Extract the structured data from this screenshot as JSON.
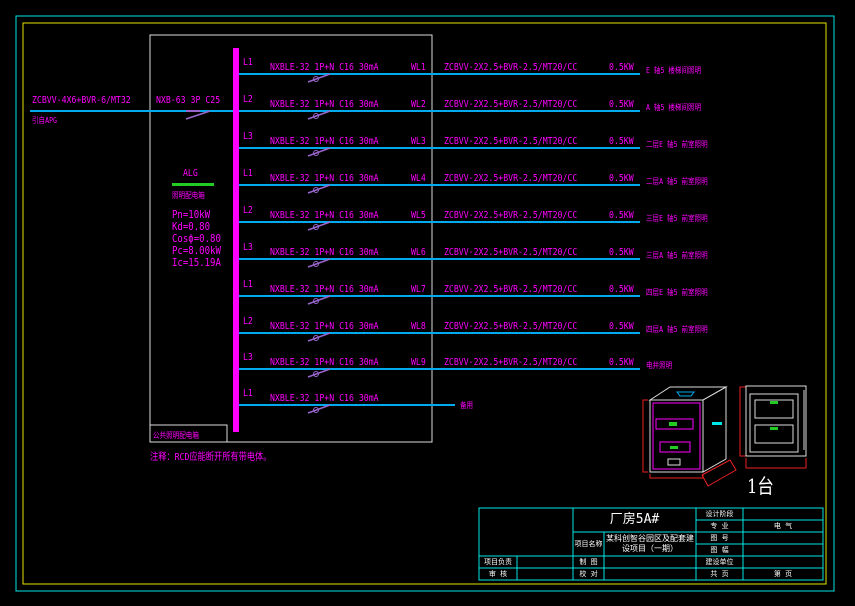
{
  "incoming": {
    "cable": "ZCBVV-4X6+BVR-6/MT32",
    "source": "引自APG",
    "breaker": "NXB-63  3P  C25"
  },
  "panel": {
    "name": "ALG",
    "type": "照明配电箱",
    "pn": "Pn=10kW",
    "kd": "Kd=0.80",
    "cos": "Cosϕ=0.80",
    "pc": "Pc=8.00kW",
    "ic": "Ic=15.19A",
    "box_label": "公共照明配电箱"
  },
  "note": "注释：RCD应能断开所有带电体。",
  "circuits": [
    {
      "phase": "L1",
      "breaker": "NXBLE-32  1P+N  C16  30mA",
      "id": "WL1",
      "cable": "ZCBVV-2X2.5+BVR-2.5/MT20/CC",
      "power": "0.5KW",
      "desc": "E 轴5 楼梯间照明"
    },
    {
      "phase": "L2",
      "breaker": "NXBLE-32  1P+N  C16  30mA",
      "id": "WL2",
      "cable": "ZCBVV-2X2.5+BVR-2.5/MT20/CC",
      "power": "0.5KW",
      "desc": "A 轴5 楼梯间照明"
    },
    {
      "phase": "L3",
      "breaker": "NXBLE-32  1P+N  C16  30mA",
      "id": "WL3",
      "cable": "ZCBVV-2X2.5+BVR-2.5/MT20/CC",
      "power": "0.5KW",
      "desc": "二层E 轴5 前室照明"
    },
    {
      "phase": "L1",
      "breaker": "NXBLE-32  1P+N  C16  30mA",
      "id": "WL4",
      "cable": "ZCBVV-2X2.5+BVR-2.5/MT20/CC",
      "power": "0.5KW",
      "desc": "二层A 轴5 前室照明"
    },
    {
      "phase": "L2",
      "breaker": "NXBLE-32  1P+N  C16  30mA",
      "id": "WL5",
      "cable": "ZCBVV-2X2.5+BVR-2.5/MT20/CC",
      "power": "0.5KW",
      "desc": "三层E 轴5 前室照明"
    },
    {
      "phase": "L3",
      "breaker": "NXBLE-32  1P+N  C16  30mA",
      "id": "WL6",
      "cable": "ZCBVV-2X2.5+BVR-2.5/MT20/CC",
      "power": "0.5KW",
      "desc": "三层A 轴5 前室照明"
    },
    {
      "phase": "L1",
      "breaker": "NXBLE-32  1P+N  C16  30mA",
      "id": "WL7",
      "cable": "ZCBVV-2X2.5+BVR-2.5/MT20/CC",
      "power": "0.5KW",
      "desc": "四层E 轴5 前室照明"
    },
    {
      "phase": "L2",
      "breaker": "NXBLE-32  1P+N  C16  30mA",
      "id": "WL8",
      "cable": "ZCBVV-2X2.5+BVR-2.5/MT20/CC",
      "power": "0.5KW",
      "desc": "四层A 轴5 前室照明"
    },
    {
      "phase": "L3",
      "breaker": "NXBLE-32  1P+N  C16  30mA",
      "id": "WL9",
      "cable": "ZCBVV-2X2.5+BVR-2.5/MT20/CC",
      "power": "0.5KW",
      "desc": "电井照明"
    },
    {
      "phase": "L1",
      "breaker": "NXBLE-32  1P+N  C16  30mA",
      "id": "",
      "cable": "",
      "power": "",
      "desc": "备用"
    }
  ],
  "cabinet": {
    "qty": "1台"
  },
  "title_block": {
    "drawing": "厂房5A#",
    "project_label": "项目名称",
    "project": "某科创智谷园区及配套建设项目（一期）",
    "design_stage": "设计阶段",
    "discipline_label": "专 业",
    "discipline": "电 气",
    "drawing_no": "图 号",
    "size": "图 幅",
    "client": "建设单位",
    "total": "共 页",
    "page": "第 页",
    "pm": "项目负责",
    "review": "审 核",
    "draw": "制 图",
    "check": "校 对"
  },
  "colors": {
    "bus": "#ff00ff",
    "line": "#00aaee",
    "frame": "#00e5e5",
    "border": "#e5e500"
  }
}
